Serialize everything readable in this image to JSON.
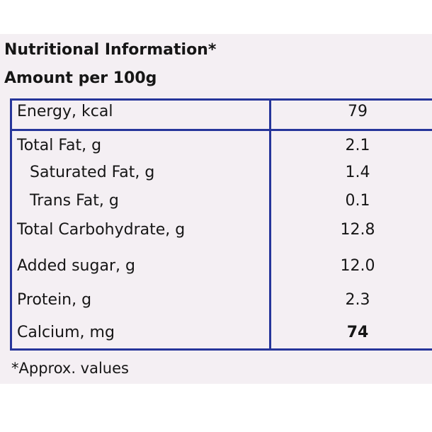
{
  "header": {
    "title": "Nutritional Information*",
    "subtitle": "Amount per 100g"
  },
  "table": {
    "rows": [
      [
        "Energy, kcal",
        "79"
      ],
      [
        "Total Fat, g",
        "2.1"
      ],
      [
        "Saturated Fat, g",
        "1.4"
      ],
      [
        "Trans Fat, g",
        "0.1"
      ],
      [
        "Total Carbohydrate, g",
        "12.8"
      ],
      [
        "Added sugar, g",
        "12.0"
      ],
      [
        "Protein, g",
        "2.3"
      ],
      [
        "Calcium, mg",
        "74"
      ]
    ]
  },
  "footnote": "*Approx. values"
}
